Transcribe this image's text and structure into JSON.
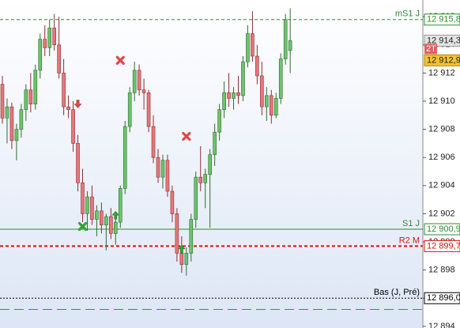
{
  "chart_data": {
    "type": "candlestick",
    "ylim": [
      12893.88,
      12917.19
    ],
    "yticks": [
      {
        "value": 12894,
        "label": "12 894"
      },
      {
        "value": 12896,
        "label": "12 896"
      },
      {
        "value": 12898,
        "label": "12 898"
      },
      {
        "value": 12900,
        "label": "12 900"
      },
      {
        "value": 12902,
        "label": "12 902"
      },
      {
        "value": 12904,
        "label": "12 904"
      },
      {
        "value": 12906,
        "label": "12 906"
      },
      {
        "value": 12908,
        "label": "12 908"
      },
      {
        "value": 12910,
        "label": "12 910"
      },
      {
        "value": 12912,
        "label": "12 912"
      },
      {
        "value": 12914,
        "label": "12 914"
      },
      {
        "value": 12916,
        "label": "12 916"
      }
    ],
    "up_color": "#6cc46c",
    "down_color": "#e8767a",
    "outline_up": "#2f6b2f",
    "outline_down": "#8a2f33",
    "candles": [
      [
        12911.2,
        12911.8,
        12908.4,
        12908.8
      ],
      [
        12908.8,
        12910.2,
        12907.0,
        12909.6
      ],
      [
        12909.6,
        12909.9,
        12906.6,
        12907.2
      ],
      [
        12907.2,
        12908.4,
        12905.8,
        12908.0
      ],
      [
        12908.0,
        12909.8,
        12907.4,
        12909.4
      ],
      [
        12909.4,
        12911.2,
        12908.6,
        12910.8
      ],
      [
        12910.8,
        12912.0,
        12909.2,
        12909.8
      ],
      [
        12909.8,
        12912.6,
        12909.4,
        12912.2
      ],
      [
        12912.2,
        12914.8,
        12911.6,
        12914.4
      ],
      [
        12914.4,
        12915.4,
        12913.2,
        12913.8
      ],
      [
        12913.8,
        12915.8,
        12913.2,
        12915.2
      ],
      [
        12915.2,
        12916.2,
        12913.6,
        12914.0
      ],
      [
        12914.0,
        12916.0,
        12911.6,
        12912.0
      ],
      [
        12912.0,
        12913.0,
        12909.0,
        12909.6
      ],
      [
        12909.6,
        12910.4,
        12908.8,
        12909.4
      ],
      [
        12909.4,
        12910.0,
        12906.4,
        12907.0
      ],
      [
        12907.0,
        12907.6,
        12903.6,
        12904.2
      ],
      [
        12904.2,
        12905.2,
        12901.4,
        12902.0
      ],
      [
        12902.0,
        12903.6,
        12900.8,
        12903.2
      ],
      [
        12903.2,
        12904.0,
        12901.2,
        12901.6
      ],
      [
        12901.6,
        12902.6,
        12900.4,
        12902.2
      ],
      [
        12902.2,
        12902.8,
        12900.6,
        12901.2
      ],
      [
        12901.2,
        12902.0,
        12899.4,
        12901.8
      ],
      [
        12901.8,
        12902.4,
        12900.2,
        12900.6
      ],
      [
        12900.6,
        12902.0,
        12899.8,
        12901.4
      ],
      [
        12901.4,
        12904.0,
        12901.0,
        12903.8
      ],
      [
        12903.8,
        12908.6,
        12903.4,
        12908.2
      ],
      [
        12908.2,
        12911.0,
        12907.8,
        12910.6
      ],
      [
        12910.6,
        12912.8,
        12910.0,
        12912.2
      ],
      [
        12912.2,
        12912.6,
        12910.4,
        12910.8
      ],
      [
        12910.8,
        12911.6,
        12909.4,
        12910.6
      ],
      [
        12910.6,
        12910.8,
        12907.8,
        12908.2
      ],
      [
        12908.2,
        12909.0,
        12905.6,
        12906.0
      ],
      [
        12906.0,
        12906.6,
        12904.2,
        12904.6
      ],
      [
        12904.6,
        12906.2,
        12903.8,
        12905.8
      ],
      [
        12905.8,
        12906.2,
        12903.2,
        12903.6
      ],
      [
        12903.6,
        12904.0,
        12901.4,
        12902.0
      ],
      [
        12902.0,
        12902.4,
        12898.6,
        12899.2
      ],
      [
        12899.2,
        12900.4,
        12897.8,
        12898.4
      ],
      [
        12898.4,
        12899.6,
        12897.6,
        12899.2
      ],
      [
        12899.2,
        12902.0,
        12898.6,
        12901.6
      ],
      [
        12901.6,
        12905.0,
        12901.0,
        12904.6
      ],
      [
        12904.6,
        12906.8,
        12903.6,
        12904.2
      ],
      [
        12904.2,
        12905.2,
        12902.4,
        12904.8
      ],
      [
        12904.8,
        12906.6,
        12901.0,
        12906.2
      ],
      [
        12906.2,
        12908.4,
        12905.4,
        12907.8
      ],
      [
        12907.8,
        12909.8,
        12907.2,
        12909.4
      ],
      [
        12909.4,
        12911.4,
        12908.8,
        12910.6
      ],
      [
        12910.6,
        12912.0,
        12909.6,
        12910.2
      ],
      [
        12910.2,
        12911.0,
        12909.4,
        12910.6
      ],
      [
        12910.6,
        12911.8,
        12909.8,
        12910.4
      ],
      [
        12910.4,
        12913.2,
        12910.0,
        12912.8
      ],
      [
        12912.8,
        12915.4,
        12912.4,
        12914.8
      ],
      [
        12914.8,
        12916.4,
        12912.8,
        12913.2
      ],
      [
        12913.2,
        12914.0,
        12911.2,
        12911.8
      ],
      [
        12911.8,
        12912.8,
        12909.0,
        12909.6
      ],
      [
        12909.6,
        12911.0,
        12908.6,
        12910.4
      ],
      [
        12910.4,
        12910.8,
        12908.4,
        12909.0
      ],
      [
        12909.0,
        12910.6,
        12908.8,
        12910.2
      ],
      [
        12910.2,
        12913.4,
        12909.8,
        12913.0
      ],
      [
        12913.0,
        12916.2,
        12912.6,
        12915.8
      ],
      [
        12913.6,
        12916.6,
        12912.0,
        12914.3
      ]
    ],
    "signals": [
      {
        "kind": "sell-arrow",
        "index": 16,
        "value": 12909.8
      },
      {
        "kind": "buy-cross",
        "index": 17,
        "value": 12901.1
      },
      {
        "kind": "buy-arrow",
        "index": 24,
        "value": 12901.9
      },
      {
        "kind": "sell-cross",
        "index": 25,
        "value": 12912.9
      },
      {
        "kind": "buy-arrow",
        "index": 38,
        "value": 12899.5
      },
      {
        "kind": "sell-cross",
        "index": 39,
        "value": 12907.5
      }
    ],
    "levels": [
      {
        "name": "mS1 J",
        "value": 12915.8,
        "label": "12 915,8",
        "color": "#2e8b2e",
        "style": "dashed"
      },
      {
        "name": "S1 J",
        "value": 12900.9,
        "label": "12 900,9",
        "color": "#2e8b2e",
        "style": "solid"
      },
      {
        "name": "R2 M",
        "value": 12899.7,
        "label": "12 899,7",
        "color": "#e01010",
        "style": "dashed"
      },
      {
        "name": "Bas (J, Pré)",
        "value": 12896.0,
        "label": "12 896,0",
        "color": "#000000",
        "style": "dotted"
      },
      {
        "value": 12895.2,
        "color": "#2e9b2e",
        "style": "long-dashed"
      }
    ],
    "last_price": {
      "value": 12914.3,
      "label": "12 914,3"
    },
    "target": {
      "tag": "2T",
      "value": 12912.9,
      "label": "12 912,9"
    }
  }
}
